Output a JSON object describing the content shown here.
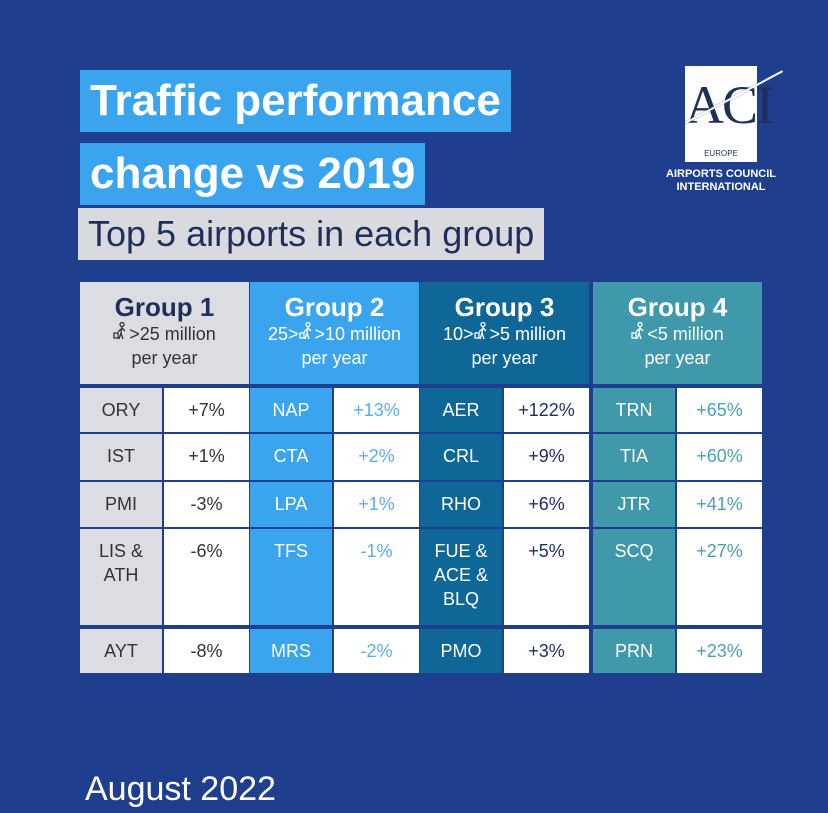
{
  "title": {
    "line1": "Traffic performance",
    "line2": "change vs 2019",
    "subtitle": "Top 5 airports in each group"
  },
  "logo": {
    "letters": "ACI",
    "region": "EUROPE",
    "name_line1": "AIRPORTS COUNCIL",
    "name_line2": "INTERNATIONAL"
  },
  "colors": {
    "background": "#1f3f8e",
    "group1": "#dcdde3",
    "group2": "#3aa4ee",
    "group3": "#0f6797",
    "group4": "#3f99ab"
  },
  "icon": "traveller-with-suitcase-icon",
  "groups": [
    {
      "title": "Group 1",
      "pre": "",
      "post": ">25 million",
      "unit": "per year",
      "rows": [
        {
          "code": "ORY",
          "value": "+7%"
        },
        {
          "code": "IST",
          "value": "+1%"
        },
        {
          "code": "PMI",
          "value": "-3%"
        },
        {
          "code": "LIS & ATH",
          "value": "-6%"
        },
        {
          "code": "AYT",
          "value": "-8%"
        }
      ]
    },
    {
      "title": "Group 2",
      "pre": "25>",
      "post": ">10 million",
      "unit": "per year",
      "rows": [
        {
          "code": "NAP",
          "value": "+13%"
        },
        {
          "code": "CTA",
          "value": "+2%"
        },
        {
          "code": "LPA",
          "value": "+1%"
        },
        {
          "code": "TFS",
          "value": "-1%"
        },
        {
          "code": "MRS",
          "value": "-2%"
        }
      ]
    },
    {
      "title": "Group 3",
      "pre": "10>",
      "post": ">5 million",
      "unit": "per year",
      "rows": [
        {
          "code": "AER",
          "value": "+122%"
        },
        {
          "code": "CRL",
          "value": "+9%"
        },
        {
          "code": "RHO",
          "value": "+6%"
        },
        {
          "code": "FUE & ACE & BLQ",
          "value": "+5%"
        },
        {
          "code": "PMO",
          "value": "+3%"
        }
      ]
    },
    {
      "title": "Group 4",
      "pre": "",
      "post": "<5 million",
      "unit": "per year",
      "rows": [
        {
          "code": "TRN",
          "value": "+65%"
        },
        {
          "code": "TIA",
          "value": "+60%"
        },
        {
          "code": "JTR",
          "value": "+41%"
        },
        {
          "code": "SCQ",
          "value": "+27%"
        },
        {
          "code": "PRN",
          "value": "+23%"
        }
      ]
    }
  ],
  "footer": "August 2022"
}
